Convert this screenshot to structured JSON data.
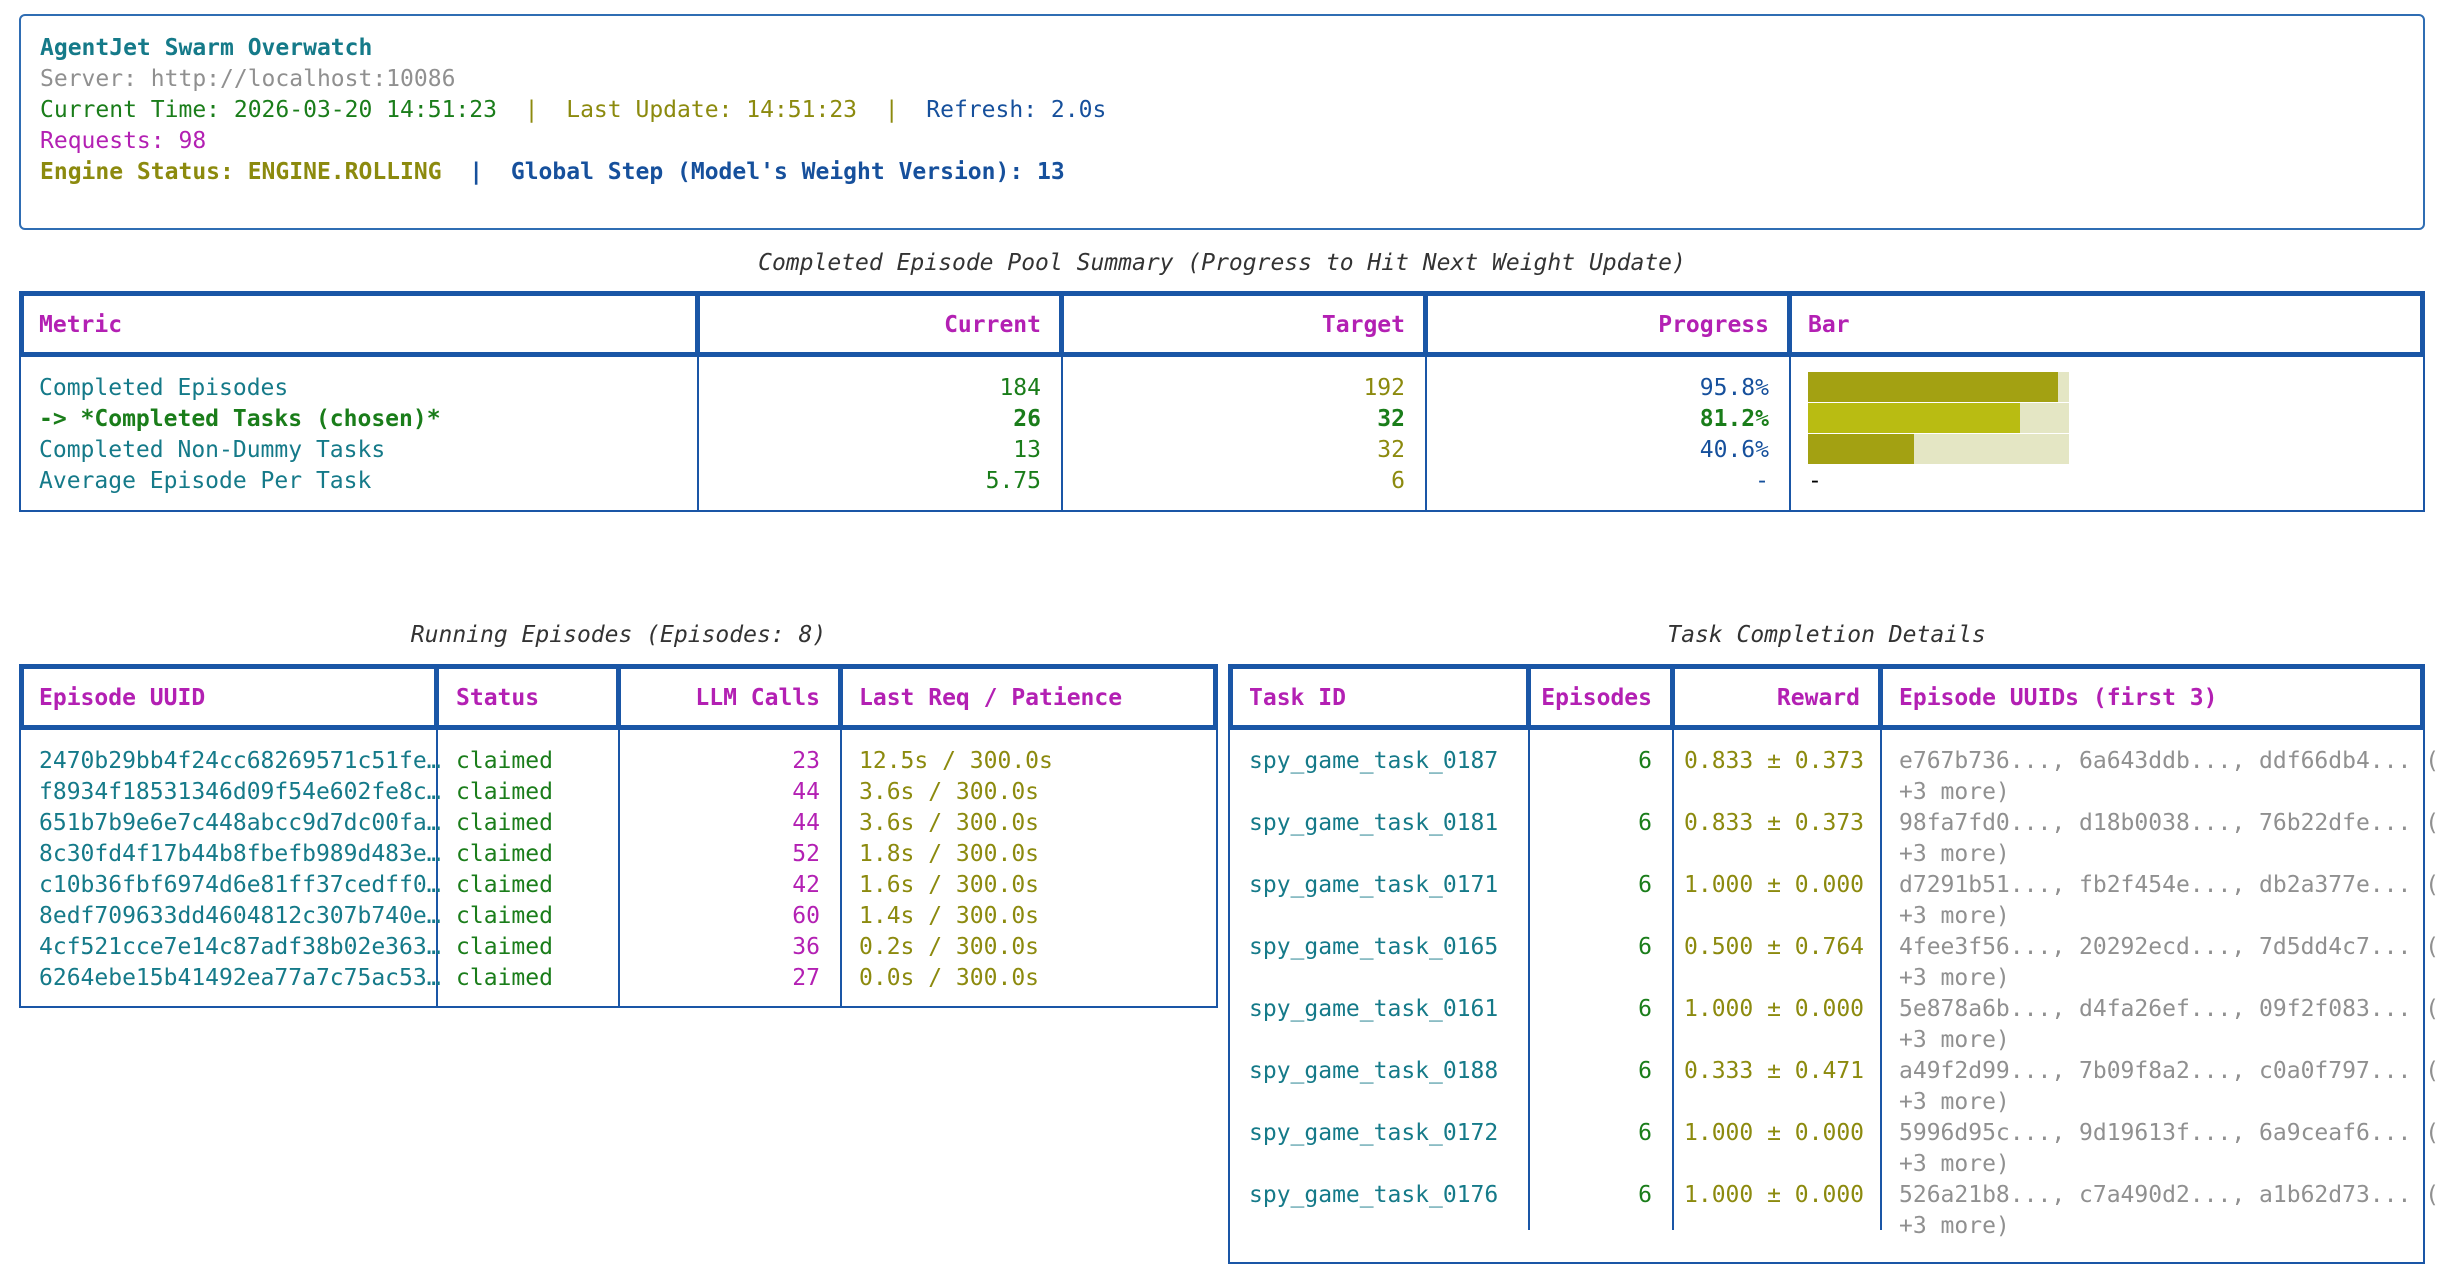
{
  "header": {
    "title": "AgentJet Swarm Overwatch",
    "server": "Server: http://localhost:10086",
    "current_time": "Current Time: 2026-03-20 14:51:23",
    "last_update": "Last Update: 14:51:23",
    "refresh": "Refresh: 2.0s",
    "requests": "Requests: 98",
    "engine_status": "Engine Status: ENGINE.ROLLING",
    "global_step": "Global Step (Model's Weight Version): 13",
    "sep": "|"
  },
  "summary": {
    "caption": "Completed Episode Pool Summary (Progress to Hit Next Weight Update)",
    "columns": [
      "Metric",
      "Current",
      "Target",
      "Progress",
      "Bar"
    ],
    "rows": [
      {
        "metric": "Completed Episodes",
        "current": "184",
        "target": "192",
        "progress": "95.8%",
        "bar_fraction": 0.958,
        "bar": ""
      },
      {
        "metric": "-> *Completed Tasks (chosen)*",
        "current": "26",
        "target": "32",
        "progress": "81.2%",
        "bar_fraction": 0.812,
        "bar": ""
      },
      {
        "metric": "Completed Non-Dummy Tasks",
        "current": "13",
        "target": "32",
        "progress": "40.6%",
        "bar_fraction": 0.406,
        "bar": ""
      },
      {
        "metric": "Average Episode Per Task",
        "current": "5.75",
        "target": "6",
        "progress": "-",
        "bar": "-"
      }
    ],
    "colors": {
      "bar_fill": "#a3a112",
      "bar_fill_chosen": "#b9bc12",
      "bar_track": "#e4e6c4"
    }
  },
  "running": {
    "caption": "Running Episodes (Episodes: 8)",
    "columns": [
      "Episode UUID",
      "Status",
      "LLM Calls",
      "Last Req / Patience"
    ],
    "rows": [
      {
        "uuid": "2470b29bb4f24cc68269571c51fe…",
        "status": "claimed",
        "calls": "23",
        "last": "12.5s / 300.0s"
      },
      {
        "uuid": "f8934f18531346d09f54e602fe8c…",
        "status": "claimed",
        "calls": "44",
        "last": "3.6s / 300.0s"
      },
      {
        "uuid": "651b7b9e6e7c448abcc9d7dc00fa…",
        "status": "claimed",
        "calls": "44",
        "last": "3.6s / 300.0s"
      },
      {
        "uuid": "8c30fd4f17b44b8fbefb989d483e…",
        "status": "claimed",
        "calls": "52",
        "last": "1.8s / 300.0s"
      },
      {
        "uuid": "c10b36fbf6974d6e81ff37cedff0…",
        "status": "claimed",
        "calls": "42",
        "last": "1.6s / 300.0s"
      },
      {
        "uuid": "8edf709633dd4604812c307b740e…",
        "status": "claimed",
        "calls": "60",
        "last": "1.4s / 300.0s"
      },
      {
        "uuid": "4cf521cce7e14c87adf38b02e363…",
        "status": "claimed",
        "calls": "36",
        "last": "0.2s / 300.0s"
      },
      {
        "uuid": "6264ebe15b41492ea77a7c75ac53…",
        "status": "claimed",
        "calls": "27",
        "last": "0.0s / 300.0s"
      }
    ]
  },
  "tasks": {
    "caption": "Task Completion Details",
    "columns": [
      "Task ID",
      "Episodes",
      "Reward",
      "Episode UUIDs (first 3)"
    ],
    "more": "+3 more)",
    "rows": [
      {
        "id": "spy_game_task_0187",
        "episodes": "6",
        "reward": "0.833 ± 0.373",
        "uuids": "e767b736..., 6a643ddb..., ddf66db4... ("
      },
      {
        "id": "spy_game_task_0181",
        "episodes": "6",
        "reward": "0.833 ± 0.373",
        "uuids": "98fa7fd0..., d18b0038..., 76b22dfe... ("
      },
      {
        "id": "spy_game_task_0171",
        "episodes": "6",
        "reward": "1.000 ± 0.000",
        "uuids": "d7291b51..., fb2f454e..., db2a377e... ("
      },
      {
        "id": "spy_game_task_0165",
        "episodes": "6",
        "reward": "0.500 ± 0.764",
        "uuids": "4fee3f56..., 20292ecd..., 7d5dd4c7... ("
      },
      {
        "id": "spy_game_task_0161",
        "episodes": "6",
        "reward": "1.000 ± 0.000",
        "uuids": "5e878a6b..., d4fa26ef..., 09f2f083... ("
      },
      {
        "id": "spy_game_task_0188",
        "episodes": "6",
        "reward": "0.333 ± 0.471",
        "uuids": "a49f2d99..., 7b09f8a2..., c0a0f797... ("
      },
      {
        "id": "spy_game_task_0172",
        "episodes": "6",
        "reward": "1.000 ± 0.000",
        "uuids": "5996d95c..., 9d19613f..., 6a9ceaf6... ("
      },
      {
        "id": "spy_game_task_0176",
        "episodes": "6",
        "reward": "1.000 ± 0.000",
        "uuids": "526a21b8..., c7a490d2..., a1b62d73... ("
      }
    ]
  }
}
